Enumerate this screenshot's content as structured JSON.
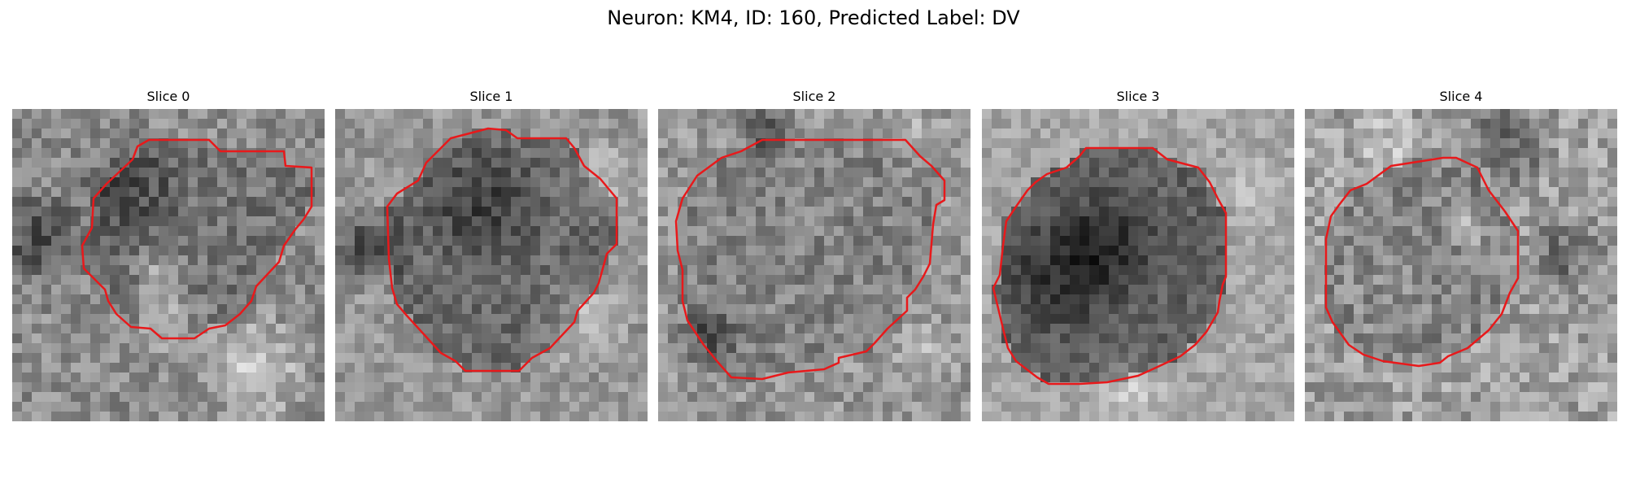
{
  "figure": {
    "title": "Neuron: KM4, ID: 160, Predicted Label: DV"
  },
  "panels": [
    {
      "title": "Slice 0"
    },
    {
      "title": "Slice 1"
    },
    {
      "title": "Slice 2"
    },
    {
      "title": "Slice 3"
    },
    {
      "title": "Slice 4"
    }
  ],
  "colors": {
    "contour": "#e8191b",
    "background": "#ffffff"
  }
}
